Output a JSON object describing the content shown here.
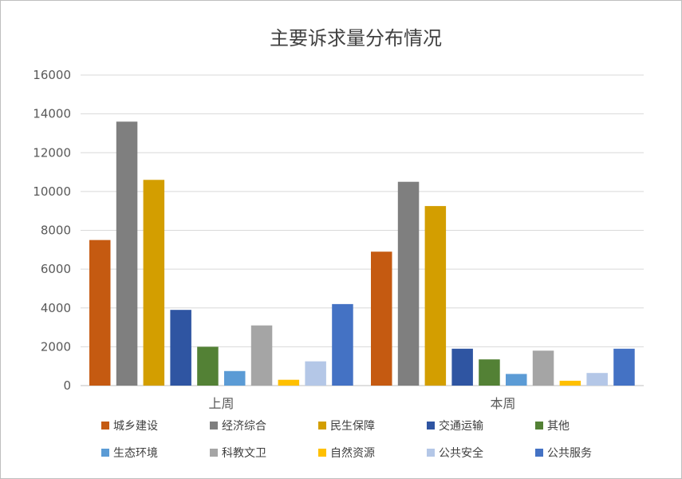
{
  "chart_data": {
    "type": "bar",
    "title": "主要诉求量分布情况",
    "xlabel": "",
    "ylabel": "",
    "ylim": [
      0,
      16000
    ],
    "yticks": [
      0,
      2000,
      4000,
      6000,
      8000,
      10000,
      12000,
      14000,
      16000
    ],
    "grid": true,
    "legend_position": "bottom",
    "categories": [
      "上周",
      "本周"
    ],
    "series": [
      {
        "name": "城乡建设",
        "color": "#c55a11",
        "values": [
          7500,
          6900
        ]
      },
      {
        "name": "经济综合",
        "color": "#7f7f7f",
        "values": [
          13600,
          10500
        ]
      },
      {
        "name": "民生保障",
        "color": "#d39e00",
        "values": [
          10600,
          9250
        ]
      },
      {
        "name": "交通运输",
        "color": "#2f55a2",
        "values": [
          3900,
          1900
        ]
      },
      {
        "name": "其他",
        "color": "#538135",
        "values": [
          2000,
          1350
        ]
      },
      {
        "name": "生态环境",
        "color": "#5b9bd5",
        "values": [
          750,
          600
        ]
      },
      {
        "name": "科教文卫",
        "color": "#a5a5a5",
        "values": [
          3100,
          1800
        ]
      },
      {
        "name": "自然资源",
        "color": "#ffc000",
        "values": [
          300,
          250
        ]
      },
      {
        "name": "公共安全",
        "color": "#b4c7e7",
        "values": [
          1250,
          650
        ]
      },
      {
        "name": "公共服务",
        "color": "#4472c4",
        "values": [
          4200,
          1900
        ]
      }
    ]
  }
}
